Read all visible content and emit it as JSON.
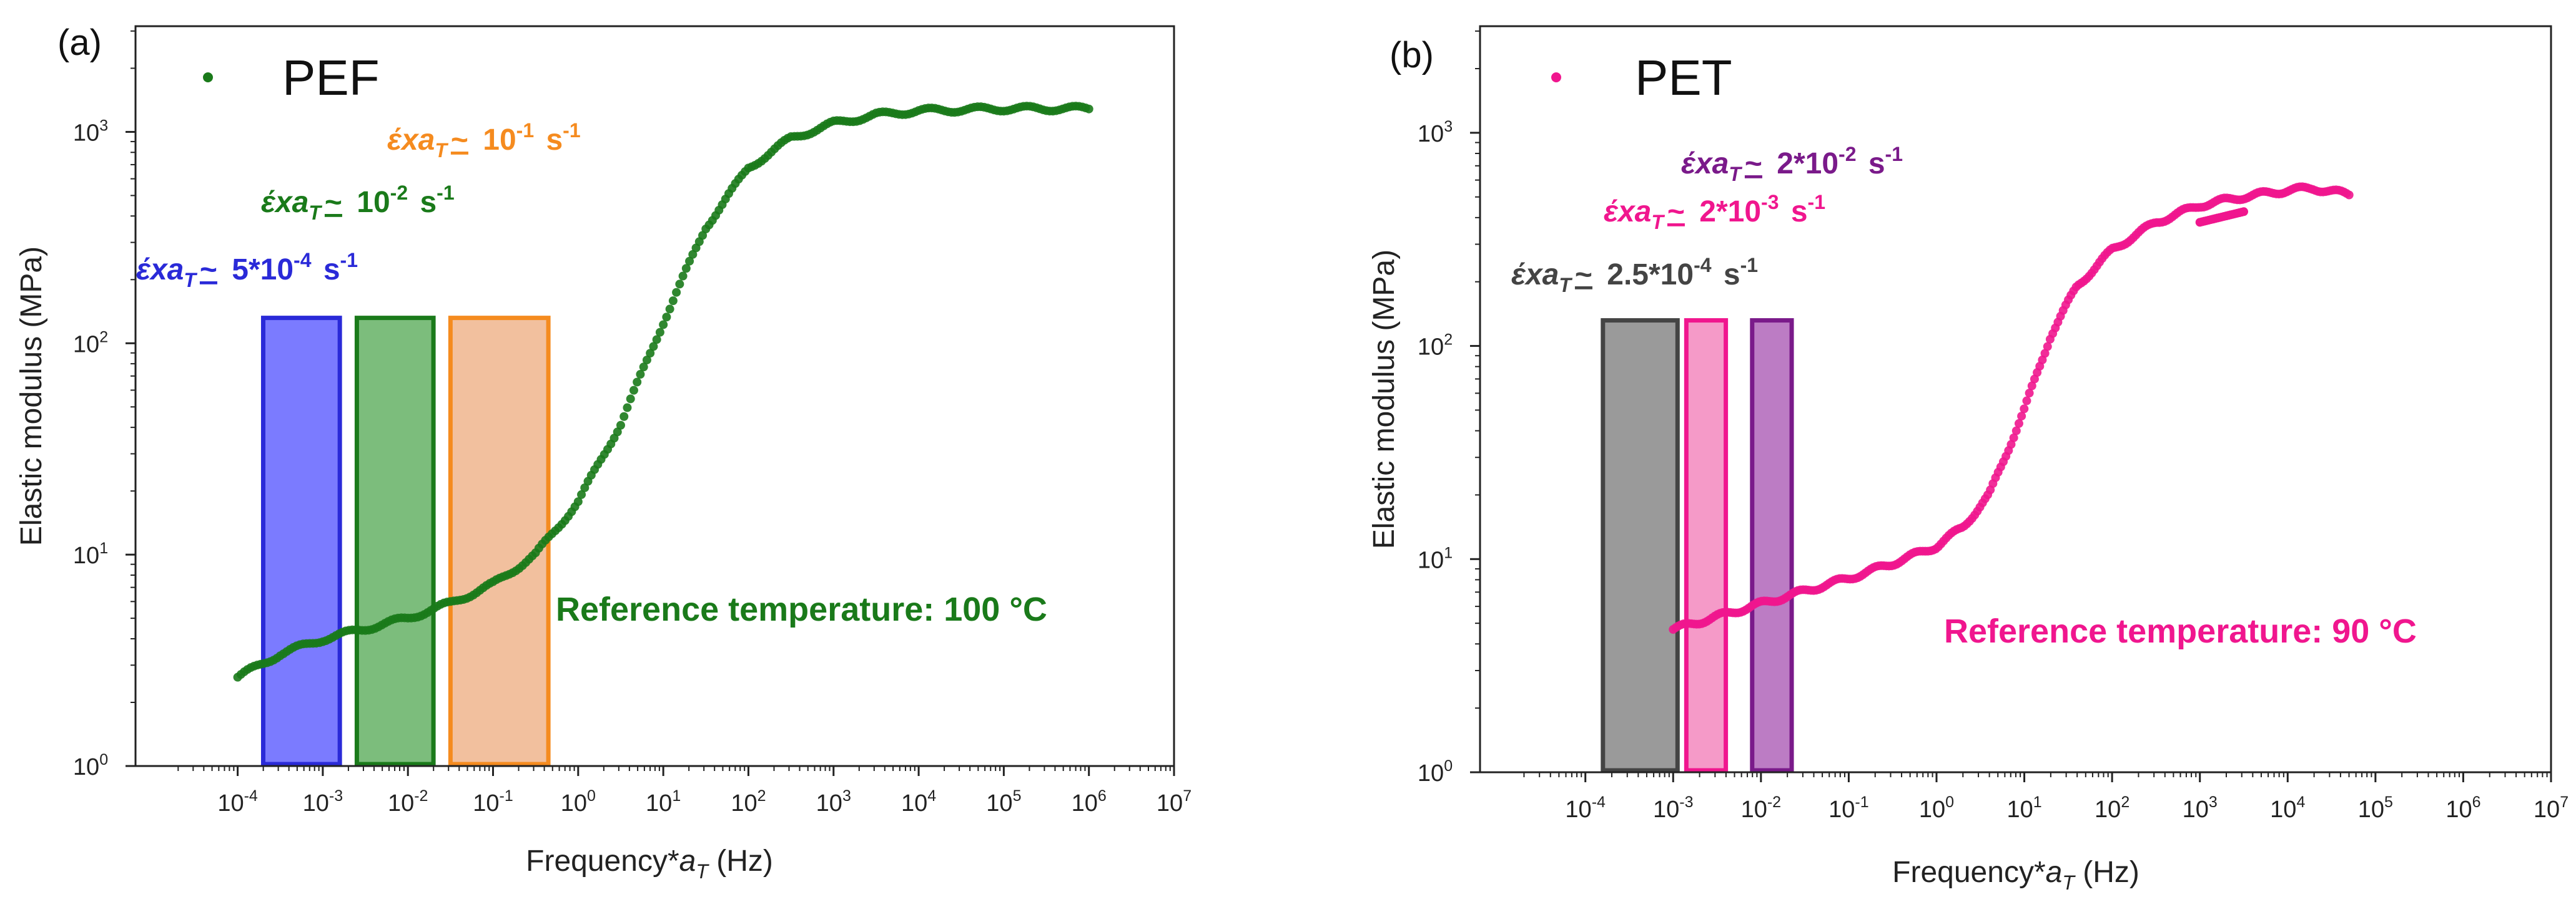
{
  "chart_data": [
    {
      "type": "scatter",
      "panel_label": "(a)",
      "legend_label": "PEF",
      "series_color": "#1a7a1a",
      "xlabel_prefix": "Frequency*",
      "xlabel_var": "a",
      "xlabel_sub": "T",
      "xlabel_suffix": " (Hz)",
      "ylabel": "Elastic modulus (MPa)",
      "x_scale": "log",
      "y_scale": "log",
      "xlim_exp": [
        -5.2,
        7
      ],
      "ylim_exp": [
        0,
        3.5
      ],
      "x_ticks": [
        {
          "base": "10",
          "exp": "-4",
          "value": -4
        },
        {
          "base": "10",
          "exp": "-3",
          "value": -3
        },
        {
          "base": "10",
          "exp": "-2",
          "value": -2
        },
        {
          "base": "10",
          "exp": "-1",
          "value": -1
        },
        {
          "base": "10",
          "exp": "0",
          "value": 0
        },
        {
          "base": "10",
          "exp": "1",
          "value": 1
        },
        {
          "base": "10",
          "exp": "2",
          "value": 2
        },
        {
          "base": "10",
          "exp": "3",
          "value": 3
        },
        {
          "base": "10",
          "exp": "4",
          "value": 4
        },
        {
          "base": "10",
          "exp": "5",
          "value": 5
        },
        {
          "base": "10",
          "exp": "6",
          "value": 6
        },
        {
          "base": "10",
          "exp": "7",
          "value": 7
        }
      ],
      "y_ticks": [
        {
          "base": "10",
          "exp": "0",
          "value": 0
        },
        {
          "base": "10",
          "exp": "1",
          "value": 1
        },
        {
          "base": "10",
          "exp": "2",
          "value": 2
        },
        {
          "base": "10",
          "exp": "3",
          "value": 3
        }
      ],
      "curve_log10": [
        [
          -4.0,
          0.42
        ],
        [
          -3.5,
          0.53
        ],
        [
          -3.0,
          0.6
        ],
        [
          -2.5,
          0.65
        ],
        [
          -2.0,
          0.7
        ],
        [
          -1.5,
          0.77
        ],
        [
          -1.0,
          0.86
        ],
        [
          -0.5,
          1.0
        ],
        [
          0.0,
          1.25
        ],
        [
          0.5,
          1.62
        ],
        [
          1.0,
          2.1
        ],
        [
          1.5,
          2.55
        ],
        [
          2.0,
          2.83
        ],
        [
          2.5,
          2.97
        ],
        [
          3.0,
          3.04
        ],
        [
          3.5,
          3.08
        ],
        [
          4.0,
          3.1
        ],
        [
          5.0,
          3.11
        ],
        [
          6.0,
          3.11
        ]
      ],
      "rate_windows": [
        {
          "x_range": [
            -3.7,
            -2.8
          ],
          "y_top": 2.12,
          "fill": "#7b7bff",
          "stroke": "#2a2ad8",
          "label_prefix": "έxa",
          "label_sub": "T",
          "label_approx": "~",
          "label_base": "5*10",
          "label_exp": "-4",
          "label_unit": "s",
          "label_unit_exp": "-1"
        },
        {
          "x_range": [
            -2.6,
            -1.7
          ],
          "y_top": 2.12,
          "fill": "#7cbd7c",
          "stroke": "#1a7a1a",
          "label_prefix": "έxa",
          "label_sub": "T",
          "label_approx": "~",
          "label_base": "10",
          "label_exp": "-2",
          "label_unit": "s",
          "label_unit_exp": "-1"
        },
        {
          "x_range": [
            -1.5,
            -0.35
          ],
          "y_top": 2.12,
          "fill": "#f2c09e",
          "stroke": "#f58b1f",
          "label_prefix": "έxa",
          "label_sub": "T",
          "label_approx": "~",
          "label_base": "10",
          "label_exp": "-1",
          "label_unit": "s",
          "label_unit_exp": "-1"
        }
      ],
      "reference_text": "Reference temperature: 100 °C",
      "reference_color": "#1a7a1a"
    },
    {
      "type": "scatter",
      "panel_label": "(b)",
      "legend_label": "PET",
      "series_color": "#f0168e",
      "xlabel_prefix": "Frequency*",
      "xlabel_var": "a",
      "xlabel_sub": "T",
      "xlabel_suffix": " (Hz)",
      "ylabel": "Elastic modulus (MPa)",
      "x_scale": "log",
      "y_scale": "log",
      "xlim_exp": [
        -5.2,
        7
      ],
      "ylim_exp": [
        0,
        3.5
      ],
      "x_ticks": [
        {
          "base": "10",
          "exp": "-4",
          "value": -4
        },
        {
          "base": "10",
          "exp": "-3",
          "value": -3
        },
        {
          "base": "10",
          "exp": "-2",
          "value": -2
        },
        {
          "base": "10",
          "exp": "-1",
          "value": -1
        },
        {
          "base": "10",
          "exp": "0",
          "value": 0
        },
        {
          "base": "10",
          "exp": "1",
          "value": 1
        },
        {
          "base": "10",
          "exp": "2",
          "value": 2
        },
        {
          "base": "10",
          "exp": "3",
          "value": 3
        },
        {
          "base": "10",
          "exp": "4",
          "value": 4
        },
        {
          "base": "10",
          "exp": "5",
          "value": 5
        },
        {
          "base": "10",
          "exp": "6",
          "value": 6
        },
        {
          "base": "10",
          "exp": "7",
          "value": 7
        }
      ],
      "y_ticks": [
        {
          "base": "10",
          "exp": "0",
          "value": 0
        },
        {
          "base": "10",
          "exp": "1",
          "value": 1
        },
        {
          "base": "10",
          "exp": "2",
          "value": 2
        },
        {
          "base": "10",
          "exp": "3",
          "value": 3
        }
      ],
      "curve_log10": [
        [
          -3.0,
          0.67
        ],
        [
          -2.5,
          0.73
        ],
        [
          -2.0,
          0.79
        ],
        [
          -1.5,
          0.85
        ],
        [
          -1.0,
          0.91
        ],
        [
          -0.5,
          0.98
        ],
        [
          0.0,
          1.06
        ],
        [
          0.3,
          1.15
        ],
        [
          0.6,
          1.3
        ],
        [
          1.0,
          1.7
        ],
        [
          1.3,
          2.05
        ],
        [
          1.6,
          2.28
        ],
        [
          2.0,
          2.45
        ],
        [
          2.5,
          2.58
        ],
        [
          3.0,
          2.66
        ],
        [
          3.5,
          2.7
        ],
        [
          4.0,
          2.73
        ],
        [
          4.3,
          2.74
        ],
        [
          4.7,
          2.71
        ]
      ],
      "curve_branch_log10": [
        [
          3.0,
          2.58
        ],
        [
          3.5,
          2.63
        ]
      ],
      "rate_windows": [
        {
          "x_range": [
            -3.8,
            -2.95
          ],
          "y_top": 2.12,
          "fill": "#9a9a9a",
          "stroke": "#444444",
          "label_prefix": "έxa",
          "label_sub": "T",
          "label_approx": "~",
          "label_base": "2.5*10",
          "label_exp": "-4",
          "label_unit": "s",
          "label_unit_exp": "-1"
        },
        {
          "x_range": [
            -2.85,
            -2.4
          ],
          "y_top": 2.12,
          "fill": "#f59ac8",
          "stroke": "#f0168e",
          "label_prefix": "έxa",
          "label_sub": "T",
          "label_approx": "~",
          "label_base": "2*10",
          "label_exp": "-3",
          "label_unit": "s",
          "label_unit_exp": "-1"
        },
        {
          "x_range": [
            -2.1,
            -1.65
          ],
          "y_top": 2.12,
          "fill": "#bc7cc4",
          "stroke": "#7a1a8a",
          "label_prefix": "έxa",
          "label_sub": "T",
          "label_approx": "~",
          "label_base": "2*10",
          "label_exp": "-2",
          "label_unit": "s",
          "label_unit_exp": "-1"
        }
      ],
      "reference_text": "Reference temperature: 90 °C",
      "reference_color": "#f0168e"
    }
  ]
}
